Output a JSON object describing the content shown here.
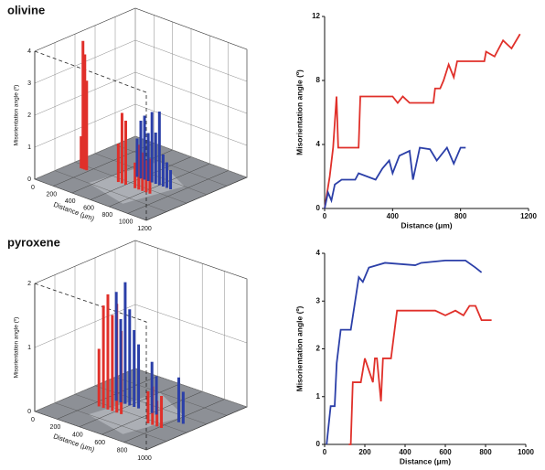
{
  "chart_data": [
    {
      "type": "bar3d",
      "title": "olivine",
      "xlabel": "Distance (μm)",
      "zlabel": "Misorientation angle (º)",
      "xlim": [
        0,
        1200
      ],
      "xticks": [
        0,
        200,
        400,
        600,
        800,
        1000,
        1200
      ],
      "zlim": [
        0,
        4
      ],
      "zticks": [
        0,
        1,
        2,
        3,
        4
      ],
      "series": [
        {
          "color": "#e0302a",
          "x": [
            120,
            140,
            160,
            180,
            520,
            560,
            600,
            700,
            740,
            780,
            820,
            860
          ],
          "values": [
            1.0,
            4.0,
            3.6,
            2.8,
            1.2,
            2.2,
            2.0,
            0.8,
            1.4,
            1.2,
            1.0,
            1.1
          ]
        },
        {
          "color": "#2b3fa8",
          "x": [
            560,
            600,
            640,
            680,
            720,
            760,
            800,
            840,
            880,
            920
          ],
          "values": [
            1.2,
            1.8,
            2.0,
            1.5,
            2.2,
            1.6,
            2.3,
            1.0,
            0.8,
            0.6
          ]
        }
      ]
    },
    {
      "type": "line",
      "xlabel": "Distance (μm)",
      "ylabel": "Misorientation angle (º)",
      "xlim": [
        0,
        1200
      ],
      "xticks": [
        0,
        400,
        800,
        1200
      ],
      "ylim": [
        0,
        12
      ],
      "yticks": [
        0,
        4,
        8,
        12
      ],
      "series": [
        {
          "color": "#e0302a",
          "x": [
            0,
            30,
            50,
            70,
            80,
            200,
            210,
            400,
            430,
            460,
            500,
            640,
            650,
            680,
            700,
            730,
            760,
            780,
            940,
            950,
            1000,
            1050,
            1100,
            1150
          ],
          "values": [
            0,
            2,
            3.8,
            7,
            3.8,
            3.8,
            7,
            7,
            6.6,
            7,
            6.6,
            6.6,
            7.5,
            7.5,
            8,
            9,
            8.2,
            9.2,
            9.2,
            9.8,
            9.5,
            10.5,
            10,
            10.9
          ]
        },
        {
          "color": "#2b3fa8",
          "x": [
            0,
            20,
            40,
            60,
            100,
            180,
            200,
            300,
            340,
            380,
            400,
            440,
            500,
            520,
            560,
            620,
            660,
            720,
            760,
            800,
            830
          ],
          "values": [
            0,
            1,
            0.5,
            1.5,
            1.8,
            1.8,
            2.2,
            1.8,
            2.5,
            3,
            2.2,
            3.3,
            3.6,
            1.8,
            3.8,
            3.7,
            3,
            3.8,
            2.8,
            3.8,
            3.8
          ]
        }
      ]
    },
    {
      "type": "bar3d",
      "title": "pyroxene",
      "xlabel": "Distance (μm)",
      "zlabel": "Misorientation angle (º)",
      "xlim": [
        0,
        1000
      ],
      "xticks": [
        0,
        200,
        400,
        600,
        800,
        1000
      ],
      "zlim": [
        0,
        2
      ],
      "zticks": [
        0,
        1,
        2
      ],
      "series": [
        {
          "color": "#e0302a",
          "x": [
            260,
            300,
            340,
            380,
            420,
            460,
            700,
            740,
            780,
            820
          ],
          "values": [
            0.9,
            1.6,
            1.8,
            1.5,
            1.7,
            1.3,
            0.5,
            0.6,
            0.4,
            0.5
          ]
        },
        {
          "color": "#2b3fa8",
          "x": [
            280,
            320,
            360,
            400,
            440,
            480,
            600,
            640,
            840,
            880
          ],
          "values": [
            1.7,
            1.3,
            1.9,
            1.5,
            1.2,
            1.0,
            0.8,
            0.6,
            0.7,
            0.5
          ]
        }
      ]
    },
    {
      "type": "line",
      "xlabel": "Distance (μm)",
      "ylabel": "Misorientation angle (º)",
      "xlim": [
        0,
        1000
      ],
      "xticks": [
        0,
        200,
        400,
        600,
        800,
        1000
      ],
      "ylim": [
        0,
        4
      ],
      "yticks": [
        0,
        1,
        2,
        3,
        4
      ],
      "series": [
        {
          "color": "#2b3fa8",
          "x": [
            10,
            30,
            50,
            60,
            80,
            130,
            170,
            190,
            220,
            300,
            450,
            480,
            600,
            700,
            750,
            780
          ],
          "values": [
            0,
            0.8,
            0.8,
            1.7,
            2.4,
            2.4,
            3.5,
            3.4,
            3.7,
            3.8,
            3.75,
            3.8,
            3.85,
            3.85,
            3.7,
            3.6
          ]
        },
        {
          "color": "#e0302a",
          "x": [
            120,
            130,
            140,
            180,
            200,
            240,
            250,
            260,
            280,
            290,
            330,
            360,
            550,
            600,
            650,
            690,
            720,
            750,
            780,
            830
          ],
          "values": [
            0,
            0,
            1.3,
            1.3,
            1.8,
            1.3,
            1.8,
            1.8,
            0.9,
            1.8,
            1.8,
            2.8,
            2.8,
            2.7,
            2.8,
            2.7,
            2.9,
            2.9,
            2.6,
            2.6
          ]
        }
      ]
    }
  ]
}
